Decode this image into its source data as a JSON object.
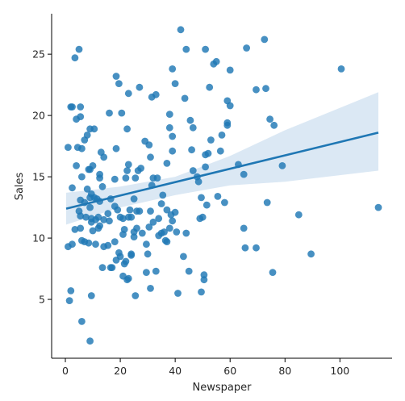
{
  "chart_data": {
    "type": "scatter",
    "title": "",
    "xlabel": "Newspaper",
    "ylabel": "Sales",
    "xlim": [
      -5,
      119
    ],
    "ylim": [
      0.2,
      28.3
    ],
    "xticks": [
      0,
      20,
      40,
      60,
      80,
      100
    ],
    "yticks": [
      5,
      10,
      15,
      20,
      25
    ],
    "grid": false,
    "colors": {
      "points": "#1f77b4",
      "line": "#1f77b4",
      "band": "#cfe0f0"
    },
    "regression": {
      "line": [
        [
          0.3,
          12.4
        ],
        [
          114,
          18.6
        ]
      ],
      "ci_upper": [
        [
          0.3,
          13.7
        ],
        [
          20,
          14.2
        ],
        [
          40,
          15.0
        ],
        [
          60,
          16.7
        ],
        [
          80,
          18.8
        ],
        [
          114,
          21.9
        ]
      ],
      "ci_lower": [
        [
          0.3,
          11.1
        ],
        [
          20,
          12.5
        ],
        [
          40,
          13.5
        ],
        [
          60,
          14.3
        ],
        [
          80,
          14.6
        ],
        [
          114,
          15.5
        ]
      ]
    },
    "points": [
      [
        1,
        17.4
      ],
      [
        2,
        20.7
      ],
      [
        2.5,
        20.7
      ],
      [
        3.5,
        24.7
      ],
      [
        5,
        25.4
      ],
      [
        4,
        19.7
      ],
      [
        5.5,
        19.9
      ],
      [
        5.5,
        20.7
      ],
      [
        6,
        17.3
      ],
      [
        4.5,
        17.4
      ],
      [
        7,
        18
      ],
      [
        8,
        18.4
      ],
      [
        9,
        18.9
      ],
      [
        10.5,
        18.9
      ],
      [
        4,
        15.9
      ],
      [
        6,
        15
      ],
      [
        8.5,
        15.6
      ],
      [
        9,
        15.6
      ],
      [
        10,
        15.9
      ],
      [
        12.5,
        15.2
      ],
      [
        12.5,
        14.9
      ],
      [
        13,
        17
      ],
      [
        14,
        16.6
      ],
      [
        16,
        20.2
      ],
      [
        18.5,
        17.3
      ],
      [
        18.5,
        23.2
      ],
      [
        19.5,
        22.6
      ],
      [
        20.5,
        20.2
      ],
      [
        22.5,
        18.9
      ],
      [
        23,
        21.8
      ],
      [
        2.5,
        14.1
      ],
      [
        5.5,
        13.1
      ],
      [
        7,
        12.9
      ],
      [
        8,
        14
      ],
      [
        9,
        13.3
      ],
      [
        9.5,
        13.6
      ],
      [
        10.5,
        13.3
      ],
      [
        11.5,
        13.2
      ],
      [
        12.5,
        13
      ],
      [
        13.5,
        14.2
      ],
      [
        5,
        12.2
      ],
      [
        5.5,
        11.8
      ],
      [
        7.5,
        11.7
      ],
      [
        9,
        12.5
      ],
      [
        9.5,
        11.3
      ],
      [
        11,
        11.5
      ],
      [
        12,
        11.7
      ],
      [
        12.5,
        11
      ],
      [
        14,
        11.5
      ],
      [
        15.5,
        12
      ],
      [
        16,
        11.4
      ],
      [
        16.5,
        13.2
      ],
      [
        18,
        12.6
      ],
      [
        19,
        12.3
      ],
      [
        20,
        11.7
      ],
      [
        21,
        11.6
      ],
      [
        22,
        14.9
      ],
      [
        22.5,
        15.5
      ],
      [
        23,
        16
      ],
      [
        18,
        14.8
      ],
      [
        1,
        9.3
      ],
      [
        2.5,
        9.5
      ],
      [
        3.5,
        10.7
      ],
      [
        5.5,
        10.8
      ],
      [
        6,
        9.8
      ],
      [
        7,
        9.7
      ],
      [
        8.5,
        9.6
      ],
      [
        9.5,
        11.6
      ],
      [
        10,
        10.6
      ],
      [
        11,
        9.5
      ],
      [
        12,
        10.8
      ],
      [
        14,
        9.3
      ],
      [
        15.5,
        9.4
      ],
      [
        16.5,
        7.6
      ],
      [
        18,
        9.7
      ],
      [
        19.5,
        8.8
      ],
      [
        20,
        8.5
      ],
      [
        21,
        10.3
      ],
      [
        21.5,
        7.9
      ],
      [
        22,
        8.1
      ],
      [
        13.5,
        7.6
      ],
      [
        17,
        7.6
      ],
      [
        21,
        6.9
      ],
      [
        22.5,
        6.6
      ],
      [
        23,
        6.7
      ],
      [
        24,
        8.7
      ],
      [
        25,
        10.1
      ],
      [
        25.5,
        5.3
      ],
      [
        24,
        8.6
      ],
      [
        18.5,
        8.2
      ],
      [
        1.5,
        4.9
      ],
      [
        2,
        5.7
      ],
      [
        6,
        3.2
      ],
      [
        9,
        1.6
      ],
      [
        9.5,
        5.3
      ],
      [
        21.5,
        10.7
      ],
      [
        23,
        11.7
      ],
      [
        24,
        11.7
      ],
      [
        25,
        13.2
      ],
      [
        26,
        12.2
      ],
      [
        23.5,
        12.3
      ],
      [
        25,
        10.5
      ],
      [
        26,
        10.8
      ],
      [
        27,
        12.2
      ],
      [
        28,
        10.4
      ],
      [
        29.5,
        9.5
      ],
      [
        30,
        8.7
      ],
      [
        30.5,
        10.9
      ],
      [
        31,
        12.2
      ],
      [
        32,
        11.3
      ],
      [
        25.5,
        14.9
      ],
      [
        26.5,
        15.5
      ],
      [
        27.5,
        15.7
      ],
      [
        29,
        17.9
      ],
      [
        30.5,
        17.6
      ],
      [
        31,
        16.6
      ],
      [
        32,
        14.9
      ],
      [
        31.5,
        14.3
      ],
      [
        27,
        22.3
      ],
      [
        31.5,
        21.5
      ],
      [
        33,
        21.7
      ],
      [
        33.5,
        14.9
      ],
      [
        34,
        10.2
      ],
      [
        34,
        11.6
      ],
      [
        35,
        12.8
      ],
      [
        35.5,
        13.5
      ],
      [
        36,
        10.5
      ],
      [
        36.5,
        9.8
      ],
      [
        37,
        12.3
      ],
      [
        38.5,
        11.9
      ],
      [
        38,
        10.8
      ],
      [
        37,
        16.1
      ],
      [
        38,
        20.1
      ],
      [
        38,
        19
      ],
      [
        39,
        18.3
      ],
      [
        39,
        17.1
      ],
      [
        39,
        23.8
      ],
      [
        40,
        22.6
      ],
      [
        39,
        11.4
      ],
      [
        40,
        12.1
      ],
      [
        29.5,
        7.2
      ],
      [
        31,
        5.9
      ],
      [
        33,
        7.3
      ],
      [
        35,
        10.4
      ],
      [
        37,
        9.7
      ],
      [
        40.5,
        10.5
      ],
      [
        41,
        5.5
      ],
      [
        42,
        27
      ],
      [
        43.5,
        21.4
      ],
      [
        44,
        25.4
      ],
      [
        43,
        8.5
      ],
      [
        44,
        10.4
      ],
      [
        45,
        7.3
      ],
      [
        45.5,
        19.6
      ],
      [
        46,
        17.2
      ],
      [
        46.5,
        19
      ],
      [
        46.5,
        15.5
      ],
      [
        48,
        15
      ],
      [
        48.5,
        14.6
      ],
      [
        49,
        11.6
      ],
      [
        49.5,
        13.3
      ],
      [
        50,
        11.7
      ],
      [
        50.5,
        6.6
      ],
      [
        51,
        25.4
      ],
      [
        51,
        15.8
      ],
      [
        51,
        16.8
      ],
      [
        50.5,
        7
      ],
      [
        49.5,
        5.6
      ],
      [
        52,
        16.9
      ],
      [
        53,
        18
      ],
      [
        51.5,
        12.7
      ],
      [
        52.5,
        22.3
      ],
      [
        54,
        24.2
      ],
      [
        55,
        24.4
      ],
      [
        55.5,
        13.4
      ],
      [
        56.5,
        17.1
      ],
      [
        57,
        18.4
      ],
      [
        58,
        12.9
      ],
      [
        59,
        21.2
      ],
      [
        59,
        19.4
      ],
      [
        59,
        19.2
      ],
      [
        60,
        20.8
      ],
      [
        60,
        23.7
      ],
      [
        63,
        16
      ],
      [
        65,
        10.8
      ],
      [
        65,
        15.2
      ],
      [
        65.5,
        9.2
      ],
      [
        66,
        25.5
      ],
      [
        69.5,
        9.2
      ],
      [
        69.5,
        22.1
      ],
      [
        72.5,
        26.2
      ],
      [
        73,
        22.2
      ],
      [
        73.5,
        12.9
      ],
      [
        74.5,
        19.7
      ],
      [
        75.5,
        7.2
      ],
      [
        76,
        19.2
      ],
      [
        79,
        15.9
      ],
      [
        85,
        11.9
      ],
      [
        89.5,
        8.7
      ],
      [
        100.5,
        23.8
      ],
      [
        114,
        12.5
      ]
    ]
  }
}
